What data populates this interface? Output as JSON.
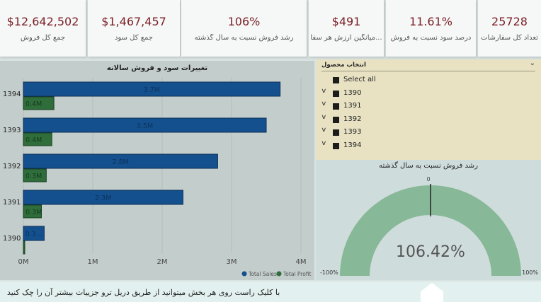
{
  "kpis": [
    {
      "value": "$12,642,502",
      "label": "جمع کل فروش"
    },
    {
      "value": "$1,467,457",
      "label": "جمع کل سود"
    },
    {
      "value": "106%",
      "label": "رشد فروش نسبت به سال گذشته"
    },
    {
      "value": "$491",
      "label": "میانگین ارزش هر سفا..."
    },
    {
      "value": "11.61%",
      "label": "درصد سود نسبت به فروش"
    },
    {
      "value": "25728",
      "label": "تعداد کل سفارشات"
    }
  ],
  "chart_data": {
    "type": "bar",
    "title": "تغییرات سود و فروش سالانه",
    "categories": [
      "1394",
      "1393",
      "1392",
      "1391",
      "1390"
    ],
    "series": [
      {
        "name": "Total Sales",
        "values": [
          3.7,
          3.5,
          2.8,
          2.3,
          0.3
        ],
        "labels": [
          "3.7M",
          "3.5M",
          "2.8M",
          "2.3M",
          "0.3..."
        ],
        "color": "#13508d"
      },
      {
        "name": "Total Profit",
        "values": [
          0.44,
          0.41,
          0.33,
          0.26,
          0.02
        ],
        "labels": [
          "0.4M",
          "0.4M",
          "0.3M",
          "0.3M",
          ""
        ],
        "color": "#2f6e3b"
      }
    ],
    "x_ticks": [
      "0M",
      "1M",
      "2M",
      "3M",
      "4M"
    ],
    "xlim": [
      0,
      4
    ],
    "legend_position": "bottom-right",
    "grid": true
  },
  "slicer": {
    "title": "انتخاب محصول",
    "chevron": "⌄",
    "items": [
      {
        "label": "Select all",
        "expandable": false
      },
      {
        "label": "1390",
        "expandable": true
      },
      {
        "label": "1391",
        "expandable": true
      },
      {
        "label": "1392",
        "expandable": true
      },
      {
        "label": "1393",
        "expandable": true
      },
      {
        "label": "1394",
        "expandable": true
      }
    ]
  },
  "gauge": {
    "title": "رشد فروش نسبت به سال گذشته",
    "value_text": "106.42%",
    "value": 106.42,
    "min_label": "-100%",
    "max_label": "100%",
    "target_label": "0",
    "color": "#87b897"
  },
  "footer": {
    "text": "با کلیک راست روی هر بخش میتوانید از طریق دریل ترو جزییات بیشتر آن را چک کنید"
  },
  "icons": {
    "back": "←"
  }
}
